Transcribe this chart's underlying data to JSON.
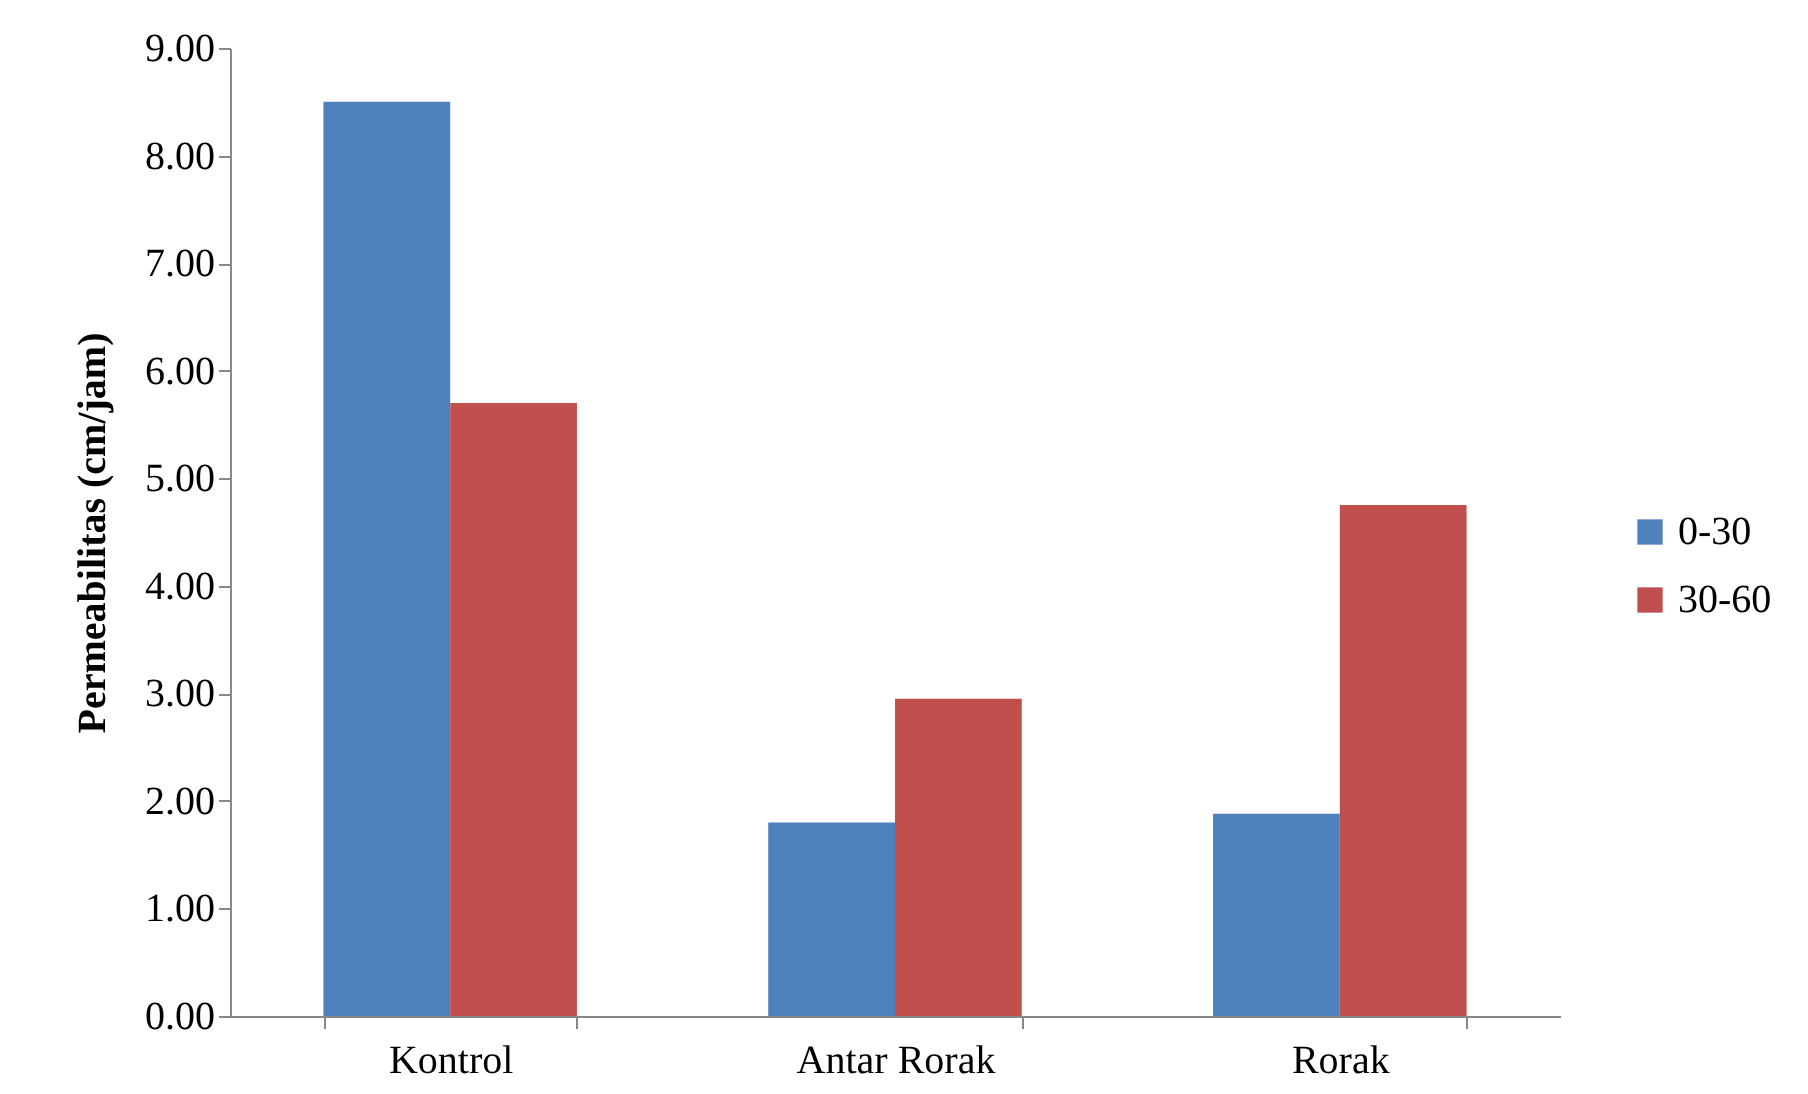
{
  "chart_data": {
    "type": "bar",
    "ylabel": "Permeabilitas (cm/jam)",
    "categories": [
      "Kontrol",
      "Antar Rorak",
      "Rorak"
    ],
    "series": [
      {
        "name": "0-30",
        "color": "#4f81bd",
        "values": [
          8.5,
          1.8,
          1.88
        ]
      },
      {
        "name": "30-60",
        "color": "#c0504d",
        "values": [
          5.7,
          2.95,
          4.75
        ]
      }
    ],
    "ylim": [
      0,
      9
    ],
    "yticks": [
      {
        "value": 0,
        "label": "0.00"
      },
      {
        "value": 1,
        "label": "1.00"
      },
      {
        "value": 2,
        "label": "2.00"
      },
      {
        "value": 3,
        "label": "3.00"
      },
      {
        "value": 4,
        "label": "4.00"
      },
      {
        "value": 5,
        "label": "5.00"
      },
      {
        "value": 6,
        "label": "6.00"
      },
      {
        "value": 7,
        "label": "7.00"
      },
      {
        "value": 8,
        "label": "8.00"
      },
      {
        "value": 9,
        "label": "9.00"
      }
    ],
    "grid": false,
    "legend": "right"
  }
}
